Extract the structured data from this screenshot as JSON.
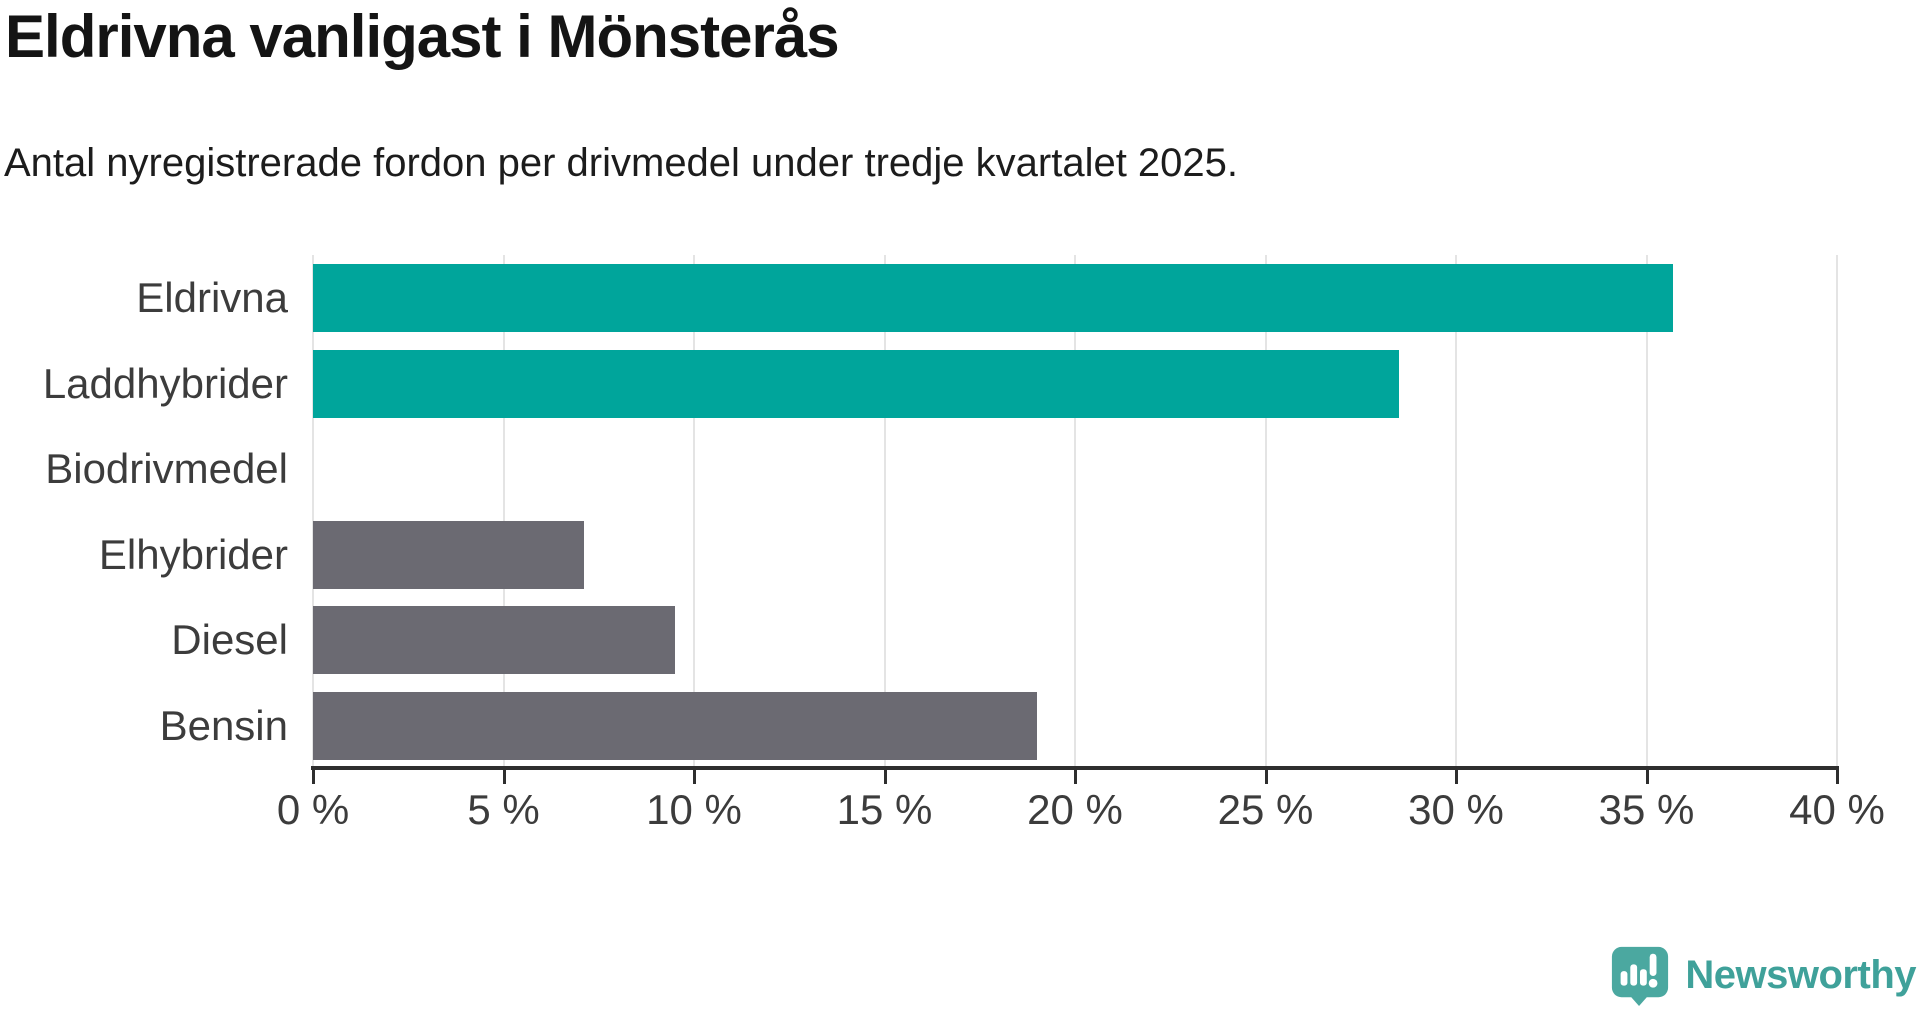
{
  "title": "Eldrivna vanligast i Mönsterås",
  "subtitle": "Antal nyregistrerade fordon per drivmedel under tredje kvartalet 2025.",
  "branding": {
    "logo_text": "Newsworthy",
    "logo_icon": "newsworthy-speech-bubble-bar-chart-icon",
    "logo_text_color": "#3fa19a",
    "logo_icon_color": "#4ba8a0"
  },
  "chart_data": {
    "type": "bar",
    "orientation": "horizontal",
    "title": "Eldrivna vanligast i Mönsterås",
    "subtitle": "Antal nyregistrerade fordon per drivmedel under tredje kvartalet 2025.",
    "categories": [
      "Eldrivna",
      "Laddhybrider",
      "Biodrivmedel",
      "Elhybrider",
      "Diesel",
      "Bensin"
    ],
    "values": [
      35.7,
      28.5,
      0,
      7.1,
      9.5,
      19.0
    ],
    "unit": "percent",
    "xlabel": "",
    "ylabel": "",
    "xlim": [
      0,
      40
    ],
    "x_ticks": [
      0,
      5,
      10,
      15,
      20,
      25,
      30,
      35,
      40
    ],
    "x_tick_labels": [
      "0 %",
      "5 %",
      "10 %",
      "15 %",
      "20 %",
      "25 %",
      "30 %",
      "35 %",
      "40 %"
    ],
    "grid": "vertical-gridlines-on",
    "legend": "none",
    "bar_colors": [
      "#00a59b",
      "#00a59b",
      "#6b6a72",
      "#6b6a72",
      "#6b6a72",
      "#6b6a72"
    ],
    "highlight_color": "#00a59b",
    "neutral_color": "#6b6a72",
    "grid_color": "#e4e4e4",
    "axis_color": "#2e2e2e",
    "label_color": "#3c3c3c"
  }
}
